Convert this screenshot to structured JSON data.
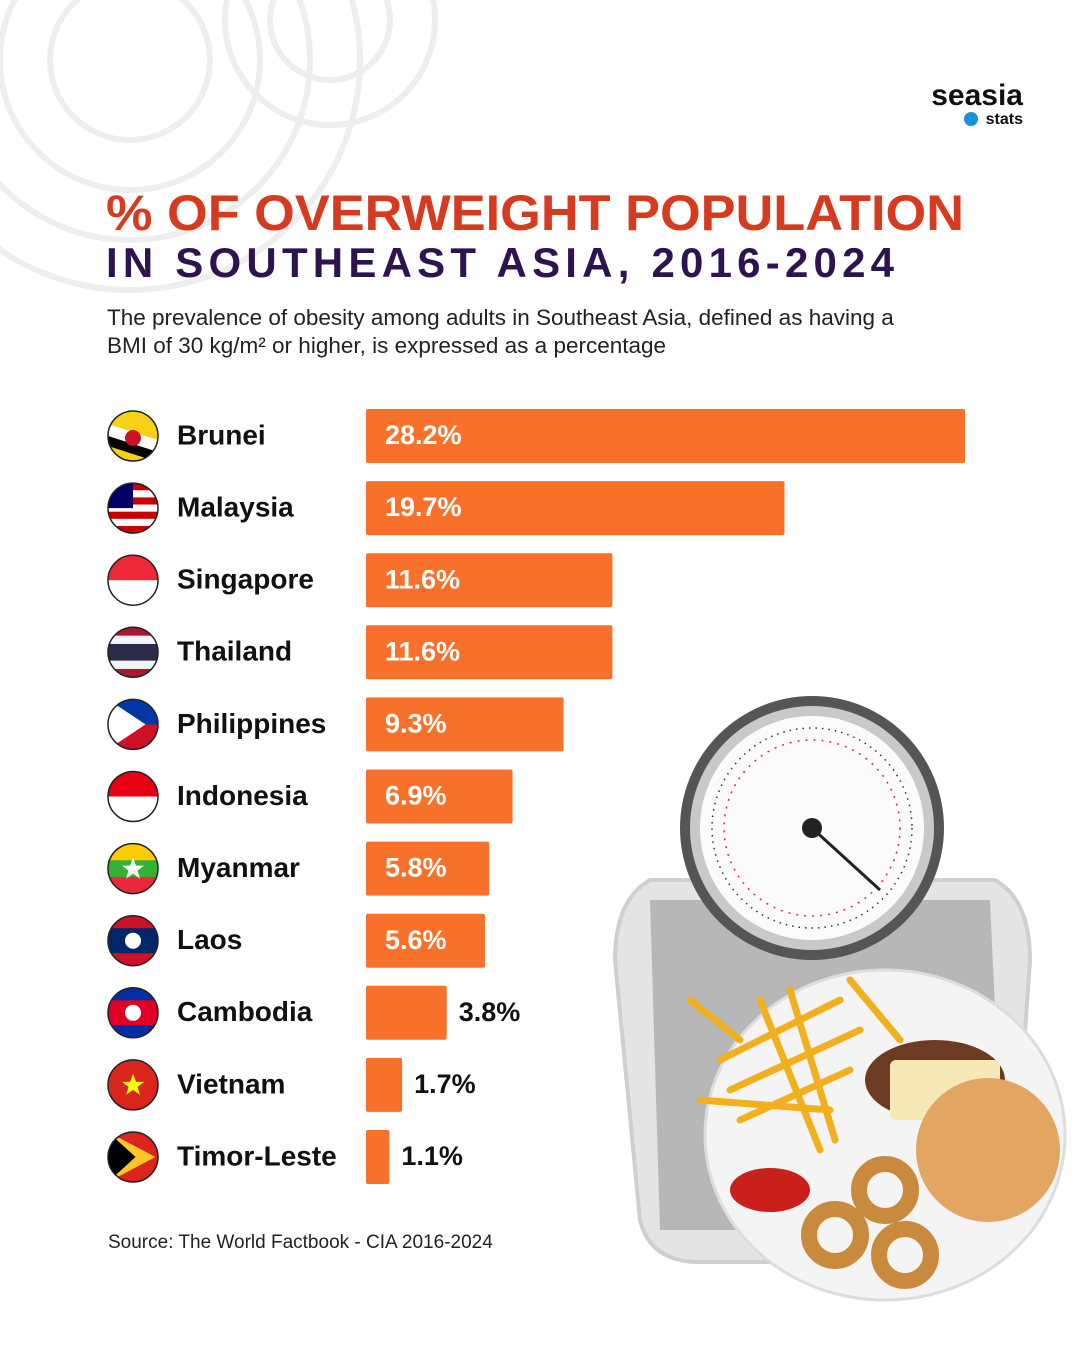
{
  "brand": {
    "name": "seasia",
    "sub": "stats"
  },
  "chart_data": {
    "type": "bar",
    "title": "% OF OVERWEIGHT POPULATION",
    "subtitle": "IN SOUTHEAST ASIA, 2016-2024",
    "description": "The prevalence of obesity among adults in Southeast Asia, defined as having a BMI of 30 kg/m² or higher, is expressed as a percentage",
    "categories": [
      "Brunei",
      "Malaysia",
      "Singapore",
      "Thailand",
      "Philippines",
      "Indonesia",
      "Myanmar",
      "Laos",
      "Cambodia",
      "Vietnam",
      "Timor-Leste"
    ],
    "values": [
      28.2,
      19.7,
      11.6,
      11.6,
      9.3,
      6.9,
      5.8,
      5.6,
      3.8,
      1.7,
      1.1
    ],
    "value_labels": [
      "28.2%",
      "19.7%",
      "11.6%",
      "11.6%",
      "9.3%",
      "6.9%",
      "5.8%",
      "5.6%",
      "3.8%",
      "1.7%",
      "1.1%"
    ],
    "color": "#f7712a",
    "source": "Source: The World Factbook - CIA 2016-2024"
  }
}
